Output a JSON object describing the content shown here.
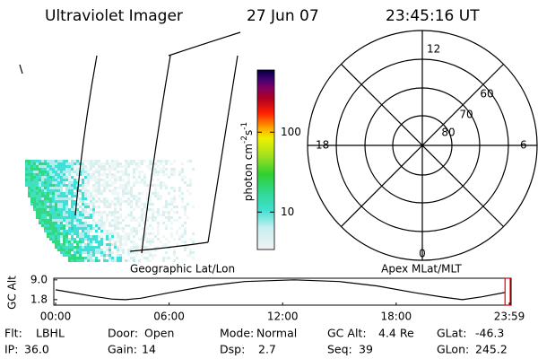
{
  "header": {
    "instrument": "Ultraviolet Imager",
    "date": "27 Jun 07",
    "time": "23:45:16 UT"
  },
  "image_panel": {
    "caption": "Geographic Lat/Lon"
  },
  "colorbar": {
    "label": {
      "text": "photon cm",
      "exp1": "-2",
      "unit2": "s",
      "exp2": "-1"
    },
    "scale": "log",
    "lim": [
      3.4,
      600
    ],
    "ticks": [
      10,
      100
    ]
  },
  "polar": {
    "caption": "Apex MLat/MLT",
    "mlt_labels": [
      "12",
      "18",
      "6",
      "0"
    ],
    "lat_labels": [
      "60",
      "70",
      "80"
    ]
  },
  "chart_data": {
    "type": "line",
    "ylabel": "GC Alt",
    "x": [
      0,
      1,
      2,
      3,
      3.7,
      4.5,
      6,
      8,
      10,
      12.6,
      15,
      17,
      19,
      20.5,
      21.5,
      22.5,
      23.75
    ],
    "series": [
      {
        "name": "GC Alt",
        "color": "#000000",
        "values": [
          5.4,
          4.2,
          3.0,
          2.0,
          1.8,
          2.3,
          4.3,
          6.8,
          8.4,
          9.0,
          8.4,
          6.8,
          4.3,
          2.7,
          1.8,
          2.8,
          4.4
        ]
      }
    ],
    "xlim": [
      0,
      23.98
    ],
    "ylim": [
      -0.2,
      9.6
    ],
    "xticks": [
      {
        "value": 0,
        "label": "00:00"
      },
      {
        "value": 6,
        "label": "06:00"
      },
      {
        "value": 12,
        "label": "12:00"
      },
      {
        "value": 18,
        "label": "18:00"
      },
      {
        "value": 23.98,
        "label": "23:59"
      }
    ],
    "yticks": [
      {
        "value": 1.8,
        "label": "1.8"
      },
      {
        "value": 9,
        "label": "9.0"
      }
    ],
    "current_time": 23.754,
    "marker_color": "#dd0000"
  },
  "info": [
    [
      {
        "label": "Flt:",
        "value": "LBHL"
      },
      {
        "label": "Door:",
        "value": "Open"
      },
      {
        "label": "Mode:",
        "value": "Normal"
      },
      {
        "label": "GC Alt:",
        "value": "4.4 Re"
      },
      {
        "label": "GLat:",
        "value": "-46.3"
      }
    ],
    [
      {
        "label": "IP:",
        "value": "36.0"
      },
      {
        "label": "Gain:",
        "value": "14"
      },
      {
        "label": "Dsp:",
        "value": "2.7"
      },
      {
        "label": "Seq:",
        "value": "39"
      },
      {
        "label": "GLon:",
        "value": "245.2"
      }
    ]
  ]
}
